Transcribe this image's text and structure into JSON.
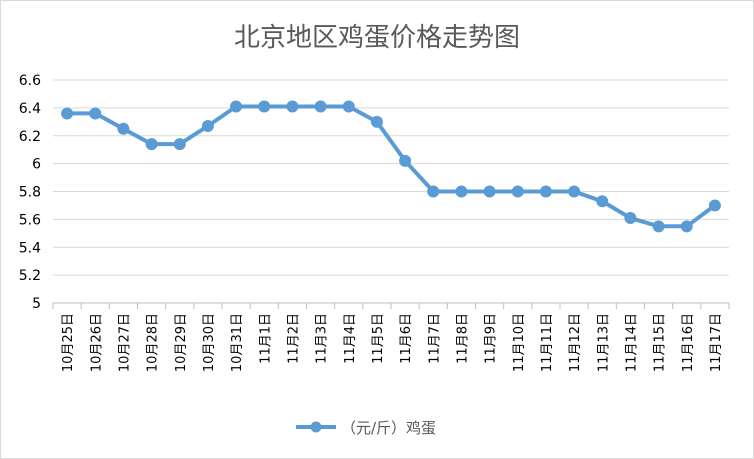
{
  "chart_data": {
    "type": "line",
    "title": "北京地区鸡蛋价格走势图",
    "categories": [
      "10月25日",
      "10月26日",
      "10月27日",
      "10月28日",
      "10月29日",
      "10月30日",
      "10月31日",
      "11月1日",
      "11月2日",
      "11月3日",
      "11月4日",
      "11月5日",
      "11月6日",
      "11月7日",
      "11月8日",
      "11月9日",
      "11月10日",
      "11月11日",
      "11月12日",
      "11月13日",
      "11月14日",
      "11月15日",
      "11月16日",
      "11月17日"
    ],
    "series": [
      {
        "name": "（元/斤）鸡蛋",
        "values": [
          6.36,
          6.36,
          6.25,
          6.14,
          6.14,
          6.27,
          6.41,
          6.41,
          6.41,
          6.41,
          6.41,
          6.3,
          6.02,
          5.8,
          5.8,
          5.8,
          5.8,
          5.8,
          5.8,
          5.73,
          5.61,
          5.55,
          5.55,
          5.7
        ]
      }
    ],
    "ylim": [
      5,
      6.6
    ],
    "yticks": [
      "5",
      "5.2",
      "5.4",
      "5.6",
      "5.8",
      "6",
      "6.2",
      "6.4",
      "6.6"
    ],
    "grid": true,
    "legend_position": "bottom",
    "color": "#5b9bd5",
    "grid_color": "#d9d9d9"
  }
}
